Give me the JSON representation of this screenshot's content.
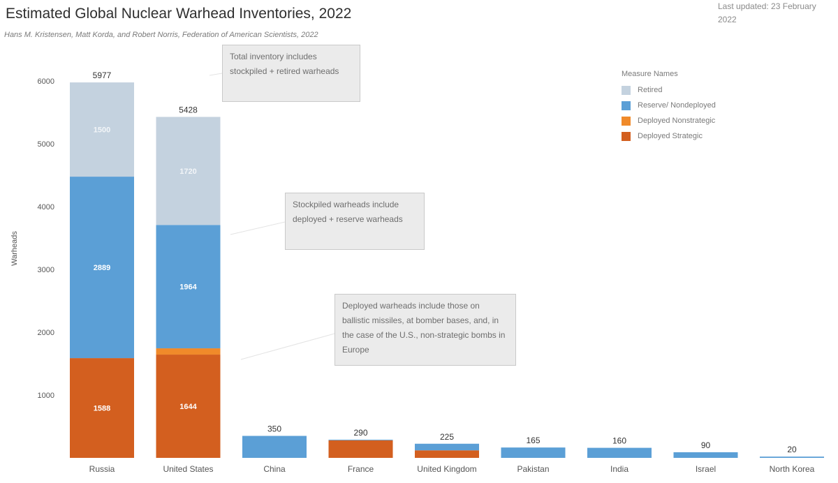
{
  "header": {
    "title": "Estimated Global Nuclear Warhead Inventories, 2022",
    "subtitle": "Hans M. Kristensen, Matt Korda, and Robert Norris, Federation of American Scientists, 2022",
    "last_updated": "Last updated: 23 February 2022"
  },
  "callouts": [
    "Total inventory includes stockpiled + retired warheads",
    "Stockpiled warheads include deployed + reserve warheads",
    "Deployed warheads include those on ballistic missiles, at bomber bases, and, in the case of the U.S., non-strategic bombs in Europe"
  ],
  "colors": {
    "Retired": "#c4d2df",
    "Reserve/ Nondeployed": "#5b9fd6",
    "Deployed Nonstrategic": "#f08a2a",
    "Deployed Strategic": "#d35f1f"
  },
  "chart_data": {
    "type": "bar",
    "stacked": true,
    "categories": [
      "Russia",
      "United States",
      "China",
      "France",
      "United Kingdom",
      "Pakistan",
      "India",
      "Israel",
      "North Korea"
    ],
    "series": [
      {
        "name": "Deployed Strategic",
        "values": [
          1588,
          1644,
          0,
          280,
          120,
          0,
          0,
          0,
          0
        ]
      },
      {
        "name": "Deployed Nonstrategic",
        "values": [
          0,
          100,
          0,
          0,
          0,
          0,
          0,
          0,
          0
        ]
      },
      {
        "name": "Reserve/ Nondeployed",
        "values": [
          2889,
          1964,
          350,
          10,
          105,
          165,
          160,
          90,
          20
        ]
      },
      {
        "name": "Retired",
        "values": [
          1500,
          1720,
          0,
          0,
          0,
          0,
          0,
          0,
          0
        ]
      }
    ],
    "segment_labels": {
      "Deployed Strategic": [
        "1588",
        "1644",
        "",
        "",
        "",
        "",
        "",
        "",
        ""
      ],
      "Reserve/ Nondeployed": [
        "2889",
        "1964",
        "",
        "",
        "",
        "",
        "",
        "",
        ""
      ],
      "Retired": [
        "1500",
        "1720",
        "",
        "",
        "",
        "",
        "",
        "",
        ""
      ]
    },
    "totals": [
      5977,
      5428,
      350,
      290,
      225,
      165,
      160,
      90,
      20
    ],
    "ylabel": "Warheads",
    "xlabel": "",
    "ylim": [
      0,
      6000
    ],
    "yticks": [
      1000,
      2000,
      3000,
      4000,
      5000,
      6000
    ],
    "legend_title": "Measure Names",
    "legend_order": [
      "Retired",
      "Reserve/ Nondeployed",
      "Deployed Nonstrategic",
      "Deployed Strategic"
    ],
    "legend_position": "top-right",
    "grid": false
  }
}
